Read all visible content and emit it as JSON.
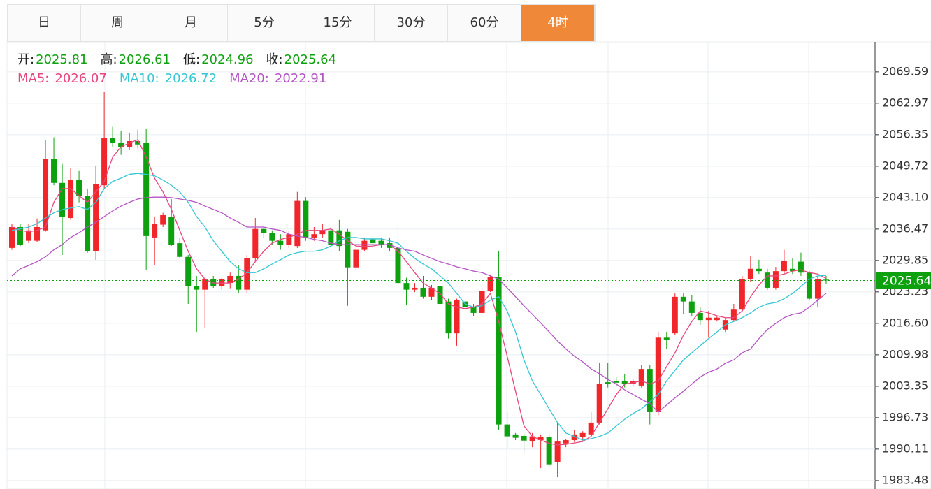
{
  "tabs": {
    "items": [
      "日",
      "周",
      "月",
      "5分",
      "15分",
      "30分",
      "60分",
      "4时"
    ],
    "active": 7
  },
  "chart_data": {
    "type": "candlestick",
    "ohlc_labels": [
      "开:",
      "高:",
      "低:",
      "收:"
    ],
    "up_color": "#f0262a",
    "down_color": "#0ea10f",
    "info_color": "#0ea10f",
    "ylim": [
      1981.7,
      2075.9
    ],
    "yticks": [
      2069.59,
      2062.97,
      2056.35,
      2049.72,
      {
        "value": 2043.1,
        "label": "2043.10"
      },
      2036.47,
      2029.85,
      2023.23,
      {
        "value": 2016.6,
        "label": "2016.60"
      },
      2009.98,
      2003.35,
      1996.73,
      1990.11,
      1983.48
    ],
    "grid": true,
    "candles": [
      [
        2032.5,
        2037.6,
        2032.1,
        2036.9
      ],
      [
        2036.9,
        2037.6,
        2032.9,
        2033.2
      ],
      [
        2034.0,
        2037.6,
        2033.5,
        2036.2
      ],
      [
        2034.0,
        2038.7,
        2033.7,
        2036.9
      ],
      [
        2036.2,
        2055.3,
        2035.9,
        2051.3
      ],
      [
        2051.3,
        2055.8,
        2045.7,
        2046.2
      ],
      [
        2046.2,
        2050.2,
        2031.0,
        2039.1
      ],
      [
        2038.8,
        2049.4,
        2038.4,
        2046.8
      ],
      [
        2046.8,
        2048.7,
        2042.1,
        2043.5
      ],
      [
        2043.5,
        2045.0,
        2031.5,
        2031.8
      ],
      [
        2031.8,
        2049.7,
        2030.0,
        2046.0
      ],
      [
        2045.7,
        2065.3,
        2045.0,
        2055.6
      ],
      [
        2055.6,
        2058.0,
        2053.8,
        2054.6
      ],
      [
        2054.6,
        2057.1,
        2052.1,
        2053.8
      ],
      [
        2053.8,
        2056.8,
        2053.1,
        2055.0
      ],
      [
        2055.0,
        2057.4,
        2053.5,
        2054.3
      ],
      [
        2054.6,
        2057.5,
        2027.8,
        2035.0
      ],
      [
        2034.7,
        2039.1,
        2028.8,
        2037.6
      ],
      [
        2037.4,
        2039.9,
        2036.9,
        2039.4
      ],
      [
        2039.1,
        2042.8,
        2032.9,
        2033.2
      ],
      [
        2033.5,
        2034.7,
        2030.3,
        2030.6
      ],
      [
        2030.6,
        2031.0,
        2020.7,
        2024.4
      ],
      [
        2024.4,
        2026.6,
        2014.8,
        2023.7
      ],
      [
        2023.7,
        2026.2,
        2015.6,
        2025.9
      ],
      [
        2025.9,
        2026.6,
        2024.1,
        2024.4
      ],
      [
        2024.4,
        2026.2,
        2023.7,
        2025.9
      ],
      [
        2025.1,
        2027.3,
        2024.0,
        2026.6
      ],
      [
        2026.6,
        2028.8,
        2022.9,
        2023.7
      ],
      [
        2023.7,
        2031.0,
        2022.9,
        2030.3
      ],
      [
        2030.3,
        2038.8,
        2029.6,
        2036.5
      ],
      [
        2036.5,
        2036.9,
        2034.7,
        2035.7
      ],
      [
        2035.7,
        2036.2,
        2033.2,
        2034.0
      ],
      [
        2034.0,
        2035.4,
        2032.1,
        2033.2
      ],
      [
        2033.2,
        2036.2,
        2032.5,
        2035.4
      ],
      [
        2032.9,
        2044.3,
        2032.5,
        2042.4
      ],
      [
        2042.4,
        2043.2,
        2034.0,
        2034.7
      ],
      [
        2034.7,
        2036.9,
        2034.0,
        2035.4
      ],
      [
        2035.4,
        2037.6,
        2034.7,
        2036.2
      ],
      [
        2036.2,
        2036.9,
        2032.5,
        2033.2
      ],
      [
        2036.2,
        2038.4,
        2031.8,
        2032.9
      ],
      [
        2035.9,
        2036.5,
        2020.3,
        2028.4
      ],
      [
        2028.4,
        2033.2,
        2027.6,
        2032.1
      ],
      [
        2032.1,
        2034.7,
        2031.8,
        2034.0
      ],
      [
        2034.3,
        2035.0,
        2032.5,
        2033.5
      ],
      [
        2034.0,
        2034.7,
        2032.5,
        2033.2
      ],
      [
        2033.5,
        2034.7,
        2031.8,
        2032.5
      ],
      [
        2032.5,
        2037.2,
        2024.7,
        2025.1
      ],
      [
        2025.1,
        2026.2,
        2020.4,
        2023.7
      ],
      [
        2023.7,
        2025.1,
        2023.2,
        2024.1
      ],
      [
        2024.1,
        2026.6,
        2021.8,
        2022.2
      ],
      [
        2022.2,
        2024.7,
        2021.5,
        2024.1
      ],
      [
        2024.4,
        2025.1,
        2020.3,
        2020.7
      ],
      [
        2021.2,
        2021.8,
        2013.4,
        2014.5
      ],
      [
        2014.5,
        2021.8,
        2011.9,
        2021.5
      ],
      [
        2021.2,
        2021.8,
        2019.2,
        2020.0
      ],
      [
        2020.0,
        2020.7,
        2018.2,
        2018.8
      ],
      [
        2018.8,
        2024.1,
        2018.5,
        2023.5
      ],
      [
        2023.5,
        2026.9,
        2023.2,
        2026.3
      ],
      [
        2026.3,
        2031.8,
        1994.2,
        1995.3
      ],
      [
        1995.3,
        1997.9,
        1990.3,
        1992.8
      ],
      [
        1993.2,
        1993.5,
        1992.0,
        1992.5
      ],
      [
        1992.9,
        1993.5,
        1989.4,
        1991.9
      ],
      [
        1991.7,
        1993.5,
        1990.5,
        1992.8
      ],
      [
        1992.0,
        1993.2,
        1986.1,
        1992.6
      ],
      [
        1992.6,
        1993.2,
        1986.4,
        1986.9
      ],
      [
        1987.3,
        1995.7,
        1984.2,
        1991.7
      ],
      [
        1991.3,
        1992.3,
        1990.5,
        1992.0
      ],
      [
        1992.0,
        1994.2,
        1991.6,
        1993.2
      ],
      [
        1992.6,
        1993.9,
        1991.7,
        1993.5
      ],
      [
        1993.2,
        1997.9,
        1992.8,
        1995.7
      ],
      [
        1995.7,
        2008.2,
        1995.3,
        2003.8
      ],
      [
        2004.2,
        2008.2,
        2003.1,
        2003.8
      ],
      [
        2004.4,
        2005.3,
        2003.5,
        2004.1
      ],
      [
        2004.5,
        2006.0,
        2003.1,
        2003.8
      ],
      [
        2003.8,
        2004.8,
        2003.5,
        2004.4
      ],
      [
        2003.5,
        2007.9,
        2003.1,
        2007.0
      ],
      [
        2007.0,
        2007.9,
        1995.3,
        1997.9
      ],
      [
        1997.9,
        2014.8,
        1997.2,
        2013.6
      ],
      [
        2013.6,
        2014.8,
        2011.2,
        2013.1
      ],
      [
        2014.5,
        2022.9,
        2014.1,
        2022.2
      ],
      [
        2022.2,
        2022.9,
        2018.5,
        2021.2
      ],
      [
        2021.2,
        2022.6,
        2018.2,
        2018.8
      ],
      [
        2018.8,
        2020.0,
        2016.3,
        2017.3
      ],
      [
        2017.3,
        2019.2,
        2013.6,
        2017.8
      ],
      [
        2017.3,
        2018.2,
        2017.0,
        2017.8
      ],
      [
        2015.3,
        2017.8,
        2014.8,
        2017.3
      ],
      [
        2017.3,
        2020.7,
        2017.0,
        2019.5
      ],
      [
        2019.5,
        2026.6,
        2019.0,
        2025.9
      ],
      [
        2025.9,
        2030.7,
        2025.4,
        2028.1
      ],
      [
        2028.1,
        2030.0,
        2027.0,
        2027.6
      ],
      [
        2027.3,
        2028.1,
        2023.7,
        2024.1
      ],
      [
        2024.1,
        2028.5,
        2023.7,
        2027.6
      ],
      [
        2027.6,
        2032.1,
        2027.0,
        2029.8
      ],
      [
        2028.1,
        2030.3,
        2027.0,
        2027.6
      ],
      [
        2029.6,
        2031.5,
        2026.6,
        2027.3
      ],
      [
        2027.3,
        2027.6,
        2021.5,
        2021.8
      ],
      [
        2021.8,
        2026.5,
        2020.0,
        2025.9
      ],
      [
        2025.81,
        2026.61,
        2024.96,
        2025.64
      ]
    ],
    "series": [
      {
        "name": "MA5:",
        "color": "#e8467c",
        "values": [
          2036.9,
          2036.2,
          2035.9,
          2036.2,
          2036.9,
          2042.1,
          2045.0,
          2045.0,
          2043.5,
          2042.1,
          2044.3,
          2046.5,
          2051.6,
          2053.8,
          2054.6,
          2055.3,
          2051.6,
          2047.2,
          2044.3,
          2040.6,
          2036.2,
          2031.8,
          2028.1,
          2025.9,
          2025.1,
          2025.1,
          2025.1,
          2025.9,
          2027.3,
          2029.6,
          2031.8,
          2033.5,
          2034.3,
          2034.7,
          2035.4,
          2036.2,
          2036.2,
          2036.2,
          2036.5,
          2035.4,
          2034.0,
          2032.9,
          2032.8,
          2032.9,
          2033.2,
          2033.2,
          2031.8,
          2029.6,
          2027.3,
          2025.1,
          2024.0,
          2022.9,
          2020.7,
          2020.0,
          2019.7,
          2020.0,
          2020.7,
          2022.9,
          2017.0,
          2009.7,
          2002.3,
          1995.0,
          1992.8,
          1992.0,
          1991.3,
          1991.0,
          1991.1,
          1991.4,
          1991.7,
          1992.8,
          1995.7,
          1998.6,
          2001.6,
          2003.8,
          2004.1,
          2004.5,
          2003.8,
          2004.5,
          2007.5,
          2010.4,
          2014.1,
          2017.0,
          2019.2,
          2018.8,
          2018.2,
          2017.8,
          2017.8,
          2019.2,
          2022.2,
          2024.7,
          2026.6,
          2026.6,
          2027.0,
          2027.6,
          2027.9,
          2027.3,
          2027.0,
          2026.07
        ]
      },
      {
        "name": "MA10:",
        "color": "#36c6d3",
        "values": [
          2036.2,
          2036.5,
          2036.9,
          2037.6,
          2038.8,
          2039.9,
          2040.6,
          2040.9,
          2041.2,
          2040.6,
          2042.1,
          2045.0,
          2046.5,
          2047.2,
          2048.0,
          2048.2,
          2048.0,
          2047.7,
          2046.8,
          2045.7,
          2044.3,
          2042.1,
          2039.1,
          2036.9,
          2034.0,
          2031.8,
          2029.6,
          2028.1,
          2027.3,
          2027.3,
          2028.1,
          2029.1,
          2030.0,
          2031.0,
          2031.5,
          2031.8,
          2031.8,
          2032.1,
          2032.9,
          2034.0,
          2034.7,
          2034.7,
          2034.4,
          2034.4,
          2034.4,
          2034.0,
          2033.5,
          2031.8,
          2030.3,
          2029.1,
          2028.1,
          2026.6,
          2025.1,
          2022.9,
          2020.7,
          2020.0,
          2020.3,
          2021.5,
          2022.2,
          2019.2,
          2014.8,
          2008.9,
          2004.5,
          2001.6,
          1998.6,
          1995.7,
          1993.5,
          1992.8,
          1992.0,
          1992.3,
          1992.8,
          1993.5,
          1995.0,
          1996.4,
          1997.6,
          1998.6,
          2000.1,
          2001.6,
          2004.5,
          2006.7,
          2008.9,
          2010.4,
          2011.9,
          2013.4,
          2014.8,
          2016.3,
          2017.0,
          2017.8,
          2018.8,
          2020.0,
          2020.7,
          2021.0,
          2021.8,
          2022.9,
          2024.4,
          2025.9,
          2026.6,
          2026.72
        ]
      },
      {
        "name": "MA20:",
        "color": "#b454c4",
        "values": [
          2026.6,
          2028.1,
          2028.8,
          2029.6,
          2030.6,
          2032.1,
          2033.2,
          2034.7,
          2035.7,
          2036.9,
          2037.9,
          2039.1,
          2040.3,
          2041.3,
          2042.1,
          2042.8,
          2043.1,
          2043.2,
          2043.2,
          2043.1,
          2042.8,
          2042.5,
          2042.1,
          2041.3,
          2040.6,
          2039.9,
          2038.8,
          2037.9,
          2036.9,
          2036.9,
          2036.9,
          2036.5,
          2036.2,
          2035.4,
          2035.0,
          2034.7,
          2034.3,
          2034.0,
          2033.5,
          2033.2,
          2033.2,
          2033.2,
          2033.2,
          2033.2,
          2033.2,
          2033.2,
          2032.5,
          2032.1,
          2031.8,
          2031.0,
          2030.3,
          2029.6,
          2029.1,
          2028.5,
          2028.1,
          2027.6,
          2027.3,
          2026.6,
          2025.9,
          2024.1,
          2022.2,
          2020.3,
          2018.5,
          2016.7,
          2014.8,
          2012.9,
          2011.2,
          2009.7,
          2008.5,
          2007.0,
          2006.0,
          2004.8,
          2003.8,
          2002.6,
          2001.6,
          2000.6,
          1999.7,
          1997.9,
          1999.4,
          2000.9,
          2002.3,
          2003.8,
          2005.3,
          2006.3,
          2007.0,
          2008.2,
          2008.9,
          2010.4,
          2011.2,
          2013.4,
          2015.3,
          2016.6,
          2017.8,
          2018.5,
          2018.8,
          2020.0,
          2021.5,
          2022.91
        ]
      }
    ]
  }
}
